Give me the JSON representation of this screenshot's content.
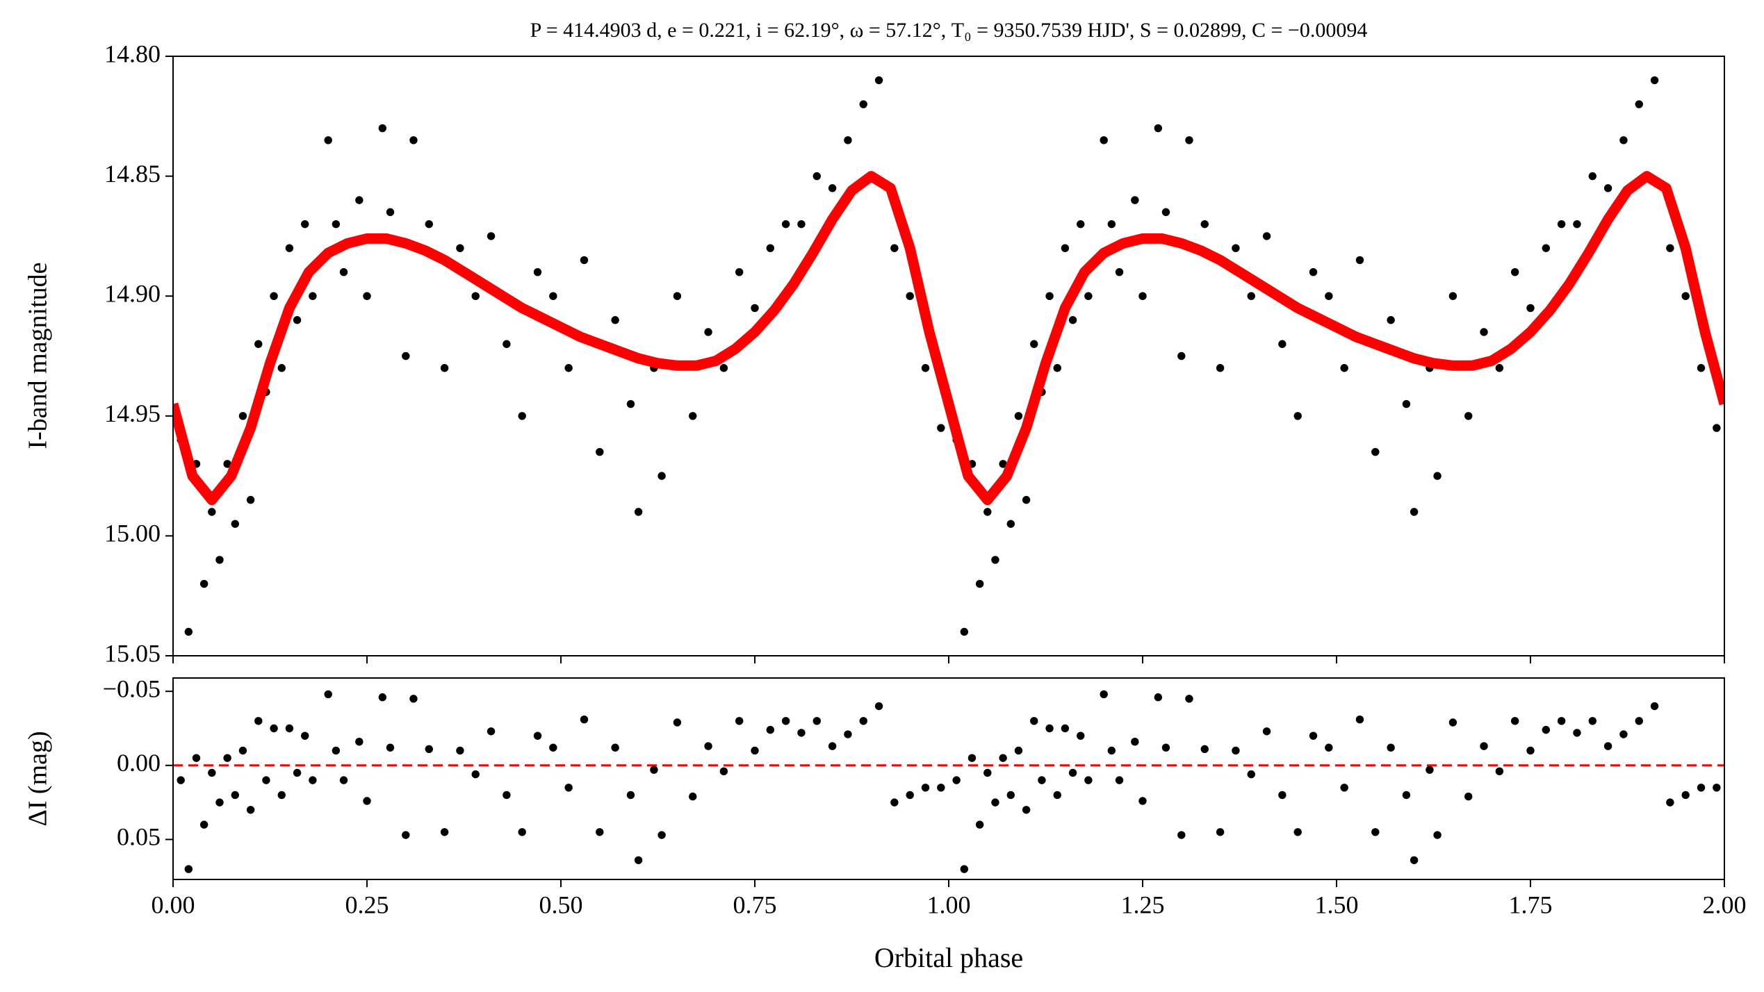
{
  "chart_data": [
    {
      "type": "scatter",
      "title": "P = 414.4903 d, e = 0.221, i = 62.19°, ω = 57.12°, T₀ = 9350.7539 HJD', S = 0.02899, C = −0.00094",
      "y_label": "I-band magnitude",
      "xlim": [
        0,
        2
      ],
      "ylim": [
        14.8,
        15.05
      ],
      "y_inverted": true,
      "yticks": [
        {
          "value": 14.8,
          "label": "14.80"
        },
        {
          "value": 14.85,
          "label": "14.85"
        },
        {
          "value": 14.9,
          "label": "14.90"
        },
        {
          "value": 14.95,
          "label": "14.95"
        },
        {
          "value": 15.0,
          "label": "15.00"
        },
        {
          "value": 15.05,
          "label": "15.05"
        }
      ],
      "series": [
        {
          "type": "scatter",
          "color": "#000000",
          "x": [
            0.01,
            0.02,
            0.03,
            0.04,
            0.05,
            0.06,
            0.07,
            0.08,
            0.09,
            0.1,
            0.11,
            0.12,
            0.13,
            0.14,
            0.15,
            0.16,
            0.17,
            0.18,
            0.2,
            0.21,
            0.22,
            0.24,
            0.25,
            0.27,
            0.28,
            0.3,
            0.31,
            0.33,
            0.35,
            0.37,
            0.39,
            0.41,
            0.43,
            0.45,
            0.47,
            0.49,
            0.51,
            0.53,
            0.55,
            0.57,
            0.59,
            0.6,
            0.62,
            0.63,
            0.65,
            0.67,
            0.69,
            0.71,
            0.73,
            0.75,
            0.77,
            0.79,
            0.81,
            0.83,
            0.85,
            0.87,
            0.89,
            0.91,
            0.93,
            0.95,
            0.97,
            0.99,
            1.01,
            1.02,
            1.03,
            1.04,
            1.05,
            1.06,
            1.07,
            1.08,
            1.09,
            1.1,
            1.11,
            1.12,
            1.13,
            1.14,
            1.15,
            1.16,
            1.17,
            1.18,
            1.2,
            1.21,
            1.22,
            1.24,
            1.25,
            1.27,
            1.28,
            1.3,
            1.31,
            1.33,
            1.35,
            1.37,
            1.39,
            1.41,
            1.43,
            1.45,
            1.47,
            1.49,
            1.51,
            1.53,
            1.55,
            1.57,
            1.59,
            1.6,
            1.62,
            1.63,
            1.65,
            1.67,
            1.69,
            1.71,
            1.73,
            1.75,
            1.77,
            1.79,
            1.81,
            1.83,
            1.85,
            1.87,
            1.89,
            1.91,
            1.93,
            1.95,
            1.97,
            1.99
          ],
          "values": [
            14.96,
            15.04,
            14.97,
            15.02,
            14.99,
            15.01,
            14.97,
            14.995,
            14.95,
            14.985,
            14.92,
            14.94,
            14.9,
            14.93,
            14.88,
            14.91,
            14.87,
            14.9,
            14.835,
            14.87,
            14.89,
            14.86,
            14.9,
            14.83,
            14.865,
            14.925,
            14.835,
            14.87,
            14.93,
            14.88,
            14.9,
            14.875,
            14.92,
            14.95,
            14.89,
            14.9,
            14.93,
            14.885,
            14.965,
            14.91,
            14.945,
            14.99,
            14.93,
            14.975,
            14.9,
            14.95,
            14.915,
            14.93,
            14.89,
            14.905,
            14.88,
            14.87,
            14.87,
            14.85,
            14.855,
            14.835,
            14.82,
            14.81,
            14.88,
            14.9,
            14.93,
            14.955,
            14.96,
            15.04,
            14.97,
            15.02,
            14.99,
            15.01,
            14.97,
            14.995,
            14.95,
            14.985,
            14.92,
            14.94,
            14.9,
            14.93,
            14.88,
            14.91,
            14.87,
            14.9,
            14.835,
            14.87,
            14.89,
            14.86,
            14.9,
            14.83,
            14.865,
            14.925,
            14.835,
            14.87,
            14.93,
            14.88,
            14.9,
            14.875,
            14.92,
            14.95,
            14.89,
            14.9,
            14.93,
            14.885,
            14.965,
            14.91,
            14.945,
            14.99,
            14.93,
            14.975,
            14.9,
            14.95,
            14.915,
            14.93,
            14.89,
            14.905,
            14.88,
            14.87,
            14.87,
            14.85,
            14.855,
            14.835,
            14.82,
            14.81,
            14.88,
            14.9,
            14.93,
            14.955
          ]
        },
        {
          "type": "line",
          "color": "#ff0000",
          "x": [
            0,
            0.025,
            0.05,
            0.075,
            0.1,
            0.125,
            0.15,
            0.175,
            0.2,
            0.225,
            0.25,
            0.275,
            0.3,
            0.325,
            0.35,
            0.375,
            0.4,
            0.425,
            0.45,
            0.475,
            0.5,
            0.525,
            0.55,
            0.575,
            0.6,
            0.625,
            0.65,
            0.675,
            0.7,
            0.725,
            0.75,
            0.775,
            0.8,
            0.825,
            0.85,
            0.875,
            0.9,
            0.925,
            0.95,
            0.975,
            1,
            1.025,
            1.05,
            1.075,
            1.1,
            1.125,
            1.15,
            1.175,
            1.2,
            1.225,
            1.25,
            1.275,
            1.3,
            1.325,
            1.35,
            1.375,
            1.4,
            1.425,
            1.45,
            1.475,
            1.5,
            1.525,
            1.55,
            1.575,
            1.6,
            1.625,
            1.65,
            1.675,
            1.7,
            1.725,
            1.75,
            1.775,
            1.8,
            1.825,
            1.85,
            1.875,
            1.9,
            1.925,
            1.95,
            1.975,
            2
          ],
          "values": [
            14.945,
            14.975,
            14.985,
            14.975,
            14.955,
            14.928,
            14.905,
            14.89,
            14.882,
            14.878,
            14.876,
            14.876,
            14.878,
            14.881,
            14.885,
            14.89,
            14.895,
            14.9,
            14.905,
            14.909,
            14.913,
            14.917,
            14.92,
            14.923,
            14.926,
            14.928,
            14.929,
            14.929,
            14.927,
            14.922,
            14.915,
            14.906,
            14.895,
            14.882,
            14.868,
            14.856,
            14.85,
            14.855,
            14.88,
            14.915,
            14.945,
            14.975,
            14.985,
            14.975,
            14.955,
            14.928,
            14.905,
            14.89,
            14.882,
            14.878,
            14.876,
            14.876,
            14.878,
            14.881,
            14.885,
            14.89,
            14.895,
            14.9,
            14.905,
            14.909,
            14.913,
            14.917,
            14.92,
            14.923,
            14.926,
            14.928,
            14.929,
            14.929,
            14.927,
            14.922,
            14.915,
            14.906,
            14.895,
            14.882,
            14.868,
            14.856,
            14.85,
            14.855,
            14.88,
            14.915,
            14.945
          ]
        }
      ]
    },
    {
      "type": "scatter",
      "x_label": "Orbital phase",
      "y_label": "ΔI (mag)",
      "xlim": [
        0,
        2
      ],
      "xticks": [
        {
          "value": 0,
          "label": "0.00"
        },
        {
          "value": 0.25,
          "label": "0.25"
        },
        {
          "value": 0.5,
          "label": "0.50"
        },
        {
          "value": 0.75,
          "label": "0.75"
        },
        {
          "value": 1,
          "label": "1.00"
        },
        {
          "value": 1.25,
          "label": "1.25"
        },
        {
          "value": 1.5,
          "label": "1.50"
        },
        {
          "value": 1.75,
          "label": "1.75"
        },
        {
          "value": 2,
          "label": "2.00"
        }
      ],
      "ylim": [
        -0.059,
        0.077
      ],
      "y_inverted": true,
      "yticks": [
        {
          "value": -0.05,
          "label": "−0.05"
        },
        {
          "value": 0,
          "label": "0.00"
        },
        {
          "value": 0.05,
          "label": "0.05"
        }
      ],
      "hline": {
        "value": 0,
        "color": "#ff0000",
        "style": "dashed"
      },
      "series": [
        {
          "type": "scatter",
          "color": "#000000",
          "x": [
            0.01,
            0.02,
            0.03,
            0.04,
            0.05,
            0.06,
            0.07,
            0.08,
            0.09,
            0.1,
            0.11,
            0.12,
            0.13,
            0.14,
            0.15,
            0.16,
            0.17,
            0.18,
            0.2,
            0.21,
            0.22,
            0.24,
            0.25,
            0.27,
            0.28,
            0.3,
            0.31,
            0.33,
            0.35,
            0.37,
            0.39,
            0.41,
            0.43,
            0.45,
            0.47,
            0.49,
            0.51,
            0.53,
            0.55,
            0.57,
            0.59,
            0.6,
            0.62,
            0.63,
            0.65,
            0.67,
            0.69,
            0.71,
            0.73,
            0.75,
            0.77,
            0.79,
            0.81,
            0.83,
            0.85,
            0.87,
            0.89,
            0.91,
            0.93,
            0.95,
            0.97,
            0.99,
            1.01,
            1.02,
            1.03,
            1.04,
            1.05,
            1.06,
            1.07,
            1.08,
            1.09,
            1.1,
            1.11,
            1.12,
            1.13,
            1.14,
            1.15,
            1.16,
            1.17,
            1.18,
            1.2,
            1.21,
            1.22,
            1.24,
            1.25,
            1.27,
            1.28,
            1.3,
            1.31,
            1.33,
            1.35,
            1.37,
            1.39,
            1.41,
            1.43,
            1.45,
            1.47,
            1.49,
            1.51,
            1.53,
            1.55,
            1.57,
            1.59,
            1.6,
            1.62,
            1.63,
            1.65,
            1.67,
            1.69,
            1.71,
            1.73,
            1.75,
            1.77,
            1.79,
            1.81,
            1.83,
            1.85,
            1.87,
            1.89,
            1.91,
            1.93,
            1.95,
            1.97,
            1.99
          ],
          "values": [
            0.01,
            0.07,
            -0.005,
            0.04,
            0.005,
            0.025,
            -0.005,
            0.02,
            -0.01,
            0.03,
            -0.03,
            0.01,
            -0.025,
            0.02,
            -0.025,
            0.005,
            -0.02,
            0.01,
            -0.048,
            -0.01,
            0.01,
            -0.016,
            0.024,
            -0.046,
            -0.012,
            0.047,
            -0.045,
            -0.011,
            0.045,
            -0.01,
            0.006,
            -0.023,
            0.02,
            0.045,
            -0.02,
            -0.012,
            0.015,
            -0.031,
            0.045,
            -0.012,
            0.02,
            0.064,
            0.003,
            0.047,
            -0.029,
            0.021,
            -0.013,
            0.004,
            -0.03,
            -0.01,
            -0.024,
            -0.03,
            -0.022,
            -0.03,
            -0.013,
            -0.021,
            -0.03,
            -0.04,
            0.025,
            0.02,
            0.015,
            0.015,
            0.01,
            0.07,
            -0.005,
            0.04,
            0.005,
            0.025,
            -0.005,
            0.02,
            -0.01,
            0.03,
            -0.03,
            0.01,
            -0.025,
            0.02,
            -0.025,
            0.005,
            -0.02,
            0.01,
            -0.048,
            -0.01,
            0.01,
            -0.016,
            0.024,
            -0.046,
            -0.012,
            0.047,
            -0.045,
            -0.011,
            0.045,
            -0.01,
            0.006,
            -0.023,
            0.02,
            0.045,
            -0.02,
            -0.012,
            0.015,
            -0.031,
            0.045,
            -0.012,
            0.02,
            0.064,
            0.003,
            0.047,
            -0.029,
            0.021,
            -0.013,
            0.004,
            -0.03,
            -0.01,
            -0.024,
            -0.03,
            -0.022,
            -0.03,
            -0.013,
            -0.021,
            -0.03,
            -0.04,
            0.025,
            0.02,
            0.015,
            0.015
          ]
        }
      ]
    }
  ]
}
